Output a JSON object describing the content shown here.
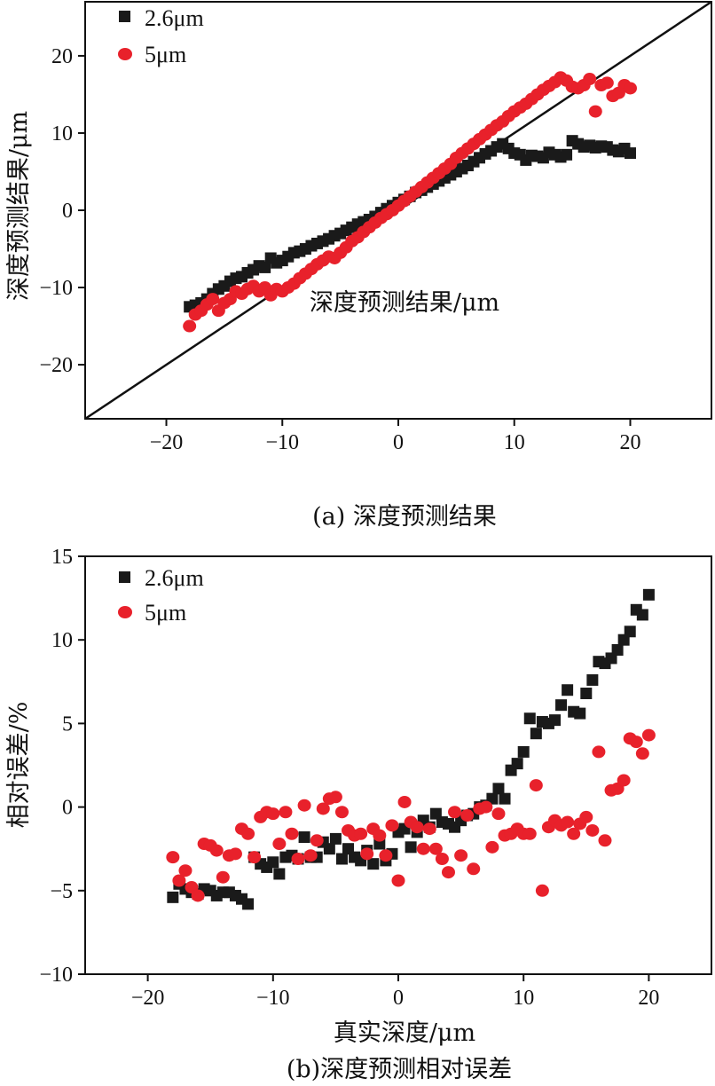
{
  "chart_data": [
    {
      "id": "a",
      "type": "scatter",
      "caption": "(a) 深度预测结果",
      "xlabel": "深度预测结果/μm",
      "ylabel": "深度预测结果/μm",
      "xlim": [
        -27,
        27
      ],
      "ylim": [
        -27,
        27
      ],
      "xticks": [
        -20,
        -10,
        0,
        10,
        20
      ],
      "yticks": [
        -20,
        -10,
        0,
        10,
        20
      ],
      "xtick_labels": [
        "−20",
        "−10",
        "0",
        "10",
        "20"
      ],
      "ytick_labels": [
        "−20",
        "−10",
        "0",
        "10",
        "20"
      ],
      "reference_line": "y = x",
      "legend_position": "top-left",
      "colors": {
        "series1": "#1a1a1a",
        "series2": "#e8212b",
        "line": "#111111"
      },
      "series": [
        {
          "name": "2.6μm",
          "marker": "square",
          "x": [
            -18,
            -17.5,
            -17,
            -16.5,
            -16,
            -15.5,
            -15,
            -14.5,
            -14,
            -13.5,
            -13,
            -12.5,
            -12,
            -11.5,
            -11,
            -10.5,
            -10,
            -9.5,
            -9,
            -8.5,
            -8,
            -7.5,
            -7,
            -6.5,
            -6,
            -5.5,
            -5,
            -4.5,
            -4,
            -3.5,
            -3,
            -2.5,
            -2,
            -1.5,
            -1,
            -0.5,
            0,
            0.5,
            1,
            1.5,
            2,
            2.5,
            3,
            3.5,
            4,
            4.5,
            5,
            5.5,
            6,
            6.5,
            7,
            7.5,
            8,
            8.5,
            9,
            9.5,
            10,
            10.5,
            11,
            11.5,
            12,
            12.5,
            13,
            13.5,
            14,
            14.5,
            15,
            15.5,
            16,
            16.5,
            17,
            17.5,
            18,
            18.5,
            19,
            19.5,
            20
          ],
          "y": [
            -12.5,
            -12.3,
            -12,
            -11.5,
            -10.8,
            -10.2,
            -9.8,
            -9.2,
            -8.8,
            -8.6,
            -8.1,
            -7.7,
            -7.2,
            -7.4,
            -6.2,
            -6.8,
            -6.5,
            -6,
            -5.5,
            -5.3,
            -5,
            -4.6,
            -4.3,
            -4,
            -3.7,
            -3.3,
            -3,
            -2.6,
            -2.2,
            -1.8,
            -1.5,
            -1.2,
            -0.8,
            -0.3,
            0.2,
            0.6,
            1,
            1.4,
            1.8,
            2.3,
            2.6,
            3,
            3.4,
            3.8,
            4.2,
            4.6,
            5,
            5.4,
            5.8,
            6.3,
            6.8,
            7.3,
            7.7,
            8.2,
            8.6,
            8,
            7.4,
            7.2,
            6.5,
            7.1,
            7,
            6.8,
            7.5,
            7.2,
            6.9,
            7.2,
            9,
            8.6,
            8.2,
            8.4,
            8.1,
            8.3,
            8.2,
            7.8,
            7.6,
            8,
            7.4
          ]
        },
        {
          "name": "5μm",
          "marker": "circle",
          "x": [
            -18,
            -17.5,
            -17,
            -16.5,
            -16,
            -15.5,
            -15,
            -14.5,
            -14,
            -13.5,
            -13,
            -12.5,
            -12,
            -11.5,
            -11,
            -10.5,
            -10,
            -9.5,
            -9,
            -8.5,
            -8,
            -7.5,
            -7,
            -6.5,
            -6,
            -5.5,
            -5,
            -4.5,
            -4,
            -3.5,
            -3,
            -2.5,
            -2,
            -1.5,
            -1,
            -0.5,
            0,
            0.5,
            1,
            1.5,
            2,
            2.5,
            3,
            3.5,
            4,
            4.5,
            5,
            5.5,
            6,
            6.5,
            7,
            7.5,
            8,
            8.5,
            9,
            9.5,
            10,
            10.5,
            11,
            11.5,
            12,
            12.5,
            13,
            13.5,
            14,
            14.5,
            15,
            15.5,
            16,
            16.5,
            17,
            17.5,
            18,
            18.5,
            19,
            19.5,
            20
          ],
          "y": [
            -15,
            -13.5,
            -13,
            -12.2,
            -11.5,
            -13,
            -12,
            -11.5,
            -10.5,
            -10.8,
            -10.2,
            -9.8,
            -10.5,
            -10,
            -11,
            -10.2,
            -10.5,
            -10,
            -9.5,
            -8.8,
            -8.2,
            -7.6,
            -7,
            -6.5,
            -6,
            -6.2,
            -5.5,
            -4.8,
            -4,
            -3.5,
            -2.8,
            -2.2,
            -1.6,
            -1,
            -0.5,
            0,
            0.6,
            1.2,
            1.8,
            2.4,
            3,
            3.6,
            4.2,
            4.8,
            5.4,
            6,
            6.8,
            7.4,
            8,
            8.6,
            9.2,
            9.8,
            10.4,
            11,
            11.5,
            12.2,
            12.8,
            13.3,
            13.8,
            14.4,
            15,
            15.6,
            16.1,
            16.6,
            17.2,
            16.8,
            16,
            15.8,
            16.2,
            17,
            12.8,
            16.2,
            16.5,
            14.8,
            15.2,
            16.2,
            15.8
          ]
        }
      ]
    },
    {
      "id": "b",
      "type": "scatter",
      "caption": "(b)深度预测相对误差",
      "xlabel": "真实深度/μm",
      "ylabel": "相对误差/%",
      "xlim": [
        -25,
        25
      ],
      "ylim": [
        -10,
        15
      ],
      "xticks": [
        -20,
        -10,
        0,
        10,
        20
      ],
      "yticks": [
        -10,
        -5,
        0,
        5,
        10,
        15
      ],
      "xtick_labels": [
        "−20",
        "−10",
        "0",
        "10",
        "20"
      ],
      "ytick_labels": [
        "−10",
        "−5",
        "0",
        "5",
        "10",
        "15"
      ],
      "legend_position": "top-left",
      "colors": {
        "series1": "#1a1a1a",
        "series2": "#e8212b"
      },
      "series": [
        {
          "name": "2.6μm",
          "marker": "square",
          "x": [
            -18,
            -17.5,
            -17,
            -16.5,
            -16,
            -15.5,
            -15,
            -14.5,
            -14,
            -13.5,
            -13,
            -12.5,
            -12,
            -11.5,
            -11,
            -10.5,
            -10,
            -9.5,
            -9,
            -8.5,
            -8,
            -7.5,
            -7,
            -6.5,
            -6,
            -5.5,
            -5,
            -4.5,
            -4,
            -3.5,
            -3,
            -2.5,
            -2,
            -1.5,
            -1,
            -0.5,
            0,
            0.5,
            1,
            1.5,
            2,
            2.5,
            3,
            3.5,
            4,
            4.5,
            5,
            5.5,
            6,
            6.5,
            7,
            7.5,
            8,
            8.5,
            9,
            9.5,
            10,
            10.5,
            11,
            11.5,
            12,
            12.5,
            13,
            13.5,
            14,
            14.5,
            15,
            15.5,
            16,
            16.5,
            17,
            17.5,
            18,
            18.5,
            19,
            19.5,
            20
          ],
          "y": [
            -5.4,
            -4.6,
            -4.9,
            -5.1,
            -5.2,
            -4.9,
            -5,
            -5.3,
            -5.1,
            -5.1,
            -5.3,
            -5.5,
            -5.8,
            -3,
            -3.4,
            -3.6,
            -3.3,
            -4,
            -3,
            -2.9,
            -3.1,
            -1.8,
            -3,
            -3,
            -2.1,
            -2.5,
            -1.9,
            -3.1,
            -2.5,
            -3,
            -3.2,
            -2.6,
            -3.4,
            -2.2,
            -3.2,
            -2.8,
            -1.5,
            -1.3,
            -2.4,
            -1.5,
            -0.8,
            -1.2,
            -0.4,
            -0.9,
            -1,
            -1.2,
            -0.8,
            -0.5,
            -0.4,
            0,
            0.1,
            0.5,
            1.1,
            0.5,
            2.2,
            2.6,
            3.3,
            5.3,
            4.4,
            5.1,
            5,
            5.2,
            6.1,
            7,
            5.7,
            5.6,
            6.8,
            7.6,
            8.7,
            8.6,
            8.9,
            9.4,
            10,
            10.5,
            11.8,
            11.5,
            12.7
          ]
        },
        {
          "name": "5μm",
          "marker": "circle",
          "x": [
            -18,
            -17.5,
            -17,
            -16.5,
            -16,
            -15.5,
            -15,
            -14.5,
            -14,
            -13.5,
            -13,
            -12.5,
            -12,
            -11.5,
            -11,
            -10.5,
            -10,
            -9.5,
            -9,
            -8.5,
            -8,
            -7.5,
            -7,
            -6.5,
            -6,
            -5.5,
            -5,
            -4.5,
            -4,
            -3.5,
            -3,
            -2.5,
            -2,
            -1.5,
            -1,
            -0.5,
            0,
            0.5,
            1,
            1.5,
            2,
            2.5,
            3,
            3.5,
            4,
            4.5,
            5,
            5.5,
            6,
            6.5,
            7,
            7.5,
            8,
            8.5,
            9,
            9.5,
            10,
            10.5,
            11,
            11.5,
            12,
            12.5,
            13,
            13.5,
            14,
            14.5,
            15,
            15.5,
            16,
            16.5,
            17,
            17.5,
            18,
            18.5,
            19,
            19.5,
            20
          ],
          "y": [
            -3,
            -4.4,
            -3.8,
            -4.8,
            -5.3,
            -2.2,
            -2.3,
            -2.6,
            -4.2,
            -2.9,
            -2.8,
            -1.3,
            -1.6,
            -3,
            -0.6,
            -0.3,
            -0.4,
            -2.2,
            -0.3,
            -1.6,
            -3.1,
            0.1,
            -2.9,
            -2,
            -0.1,
            0.5,
            0.6,
            -0.3,
            -1.4,
            -1.7,
            -1.6,
            -2.8,
            -1.3,
            -1.7,
            -2.9,
            -1.1,
            -4.4,
            0.3,
            -0.9,
            -1.2,
            -2.5,
            -1.3,
            -2.5,
            -3.1,
            -3.9,
            -0.3,
            -2.9,
            -0.5,
            -3.7,
            -0.1,
            0,
            -2.4,
            -0.4,
            -1.7,
            -1.6,
            -1.3,
            -1.6,
            -1.6,
            1.3,
            -5,
            -1.2,
            -0.8,
            -1.1,
            -0.9,
            -1.6,
            -1,
            -0.6,
            -1.4,
            3.3,
            -2,
            1,
            1.1,
            1.6,
            4.1,
            3.9,
            3.2,
            4.3
          ]
        }
      ]
    }
  ]
}
